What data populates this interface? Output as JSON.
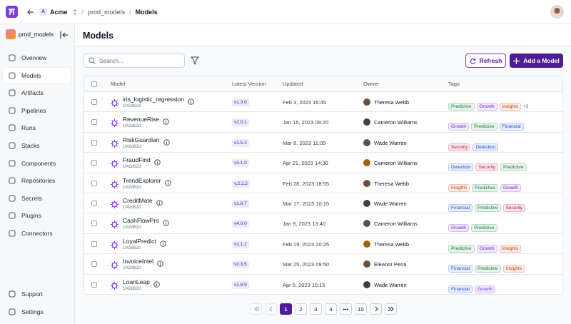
{
  "header": {
    "workspace_initial": "A",
    "workspace": "Acme",
    "breadcrumb": [
      "prod_models",
      "Models"
    ]
  },
  "sidebar": {
    "project": "prod_models",
    "nav": [
      "Overview",
      "Models",
      "Artifacts",
      "Pipelines",
      "Runs",
      "Stacks",
      "Components",
      "Repositories",
      "Secrets",
      "Plugins",
      "Connectors"
    ],
    "active": 1,
    "footer": [
      "Support",
      "Settings"
    ]
  },
  "main": {
    "title": "Models",
    "search_placeholder": "Search...",
    "refresh": "Refresh",
    "add": "Add a Model"
  },
  "table": {
    "columns": [
      "Model",
      "Latest Version",
      "Updated",
      "Owner",
      "Tags"
    ],
    "rows": [
      {
        "name": "iris_logistic_regression",
        "id": "1f42d62d",
        "version": "v1.3.0",
        "updated": "Feb 3, 2023 16:45",
        "owner": "Theresa Webb",
        "tags": [
          {
            "label": "Predictive",
            "color": "#15803d"
          },
          {
            "label": "Growth",
            "color": "#6d28d9"
          },
          {
            "label": "Insights",
            "color": "#c2410c"
          }
        ],
        "more": "+3"
      },
      {
        "name": "RevenueRise",
        "id": "1f42d62d",
        "version": "v2.0.1",
        "updated": "Jan 15, 2023 09:20",
        "owner": "Cameron Williams",
        "tags": [
          {
            "label": "Growth",
            "color": "#6d28d9"
          },
          {
            "label": "Predictive",
            "color": "#15803d"
          },
          {
            "label": "Financial",
            "color": "#1d4ed8"
          }
        ]
      },
      {
        "name": "RiskGuardian",
        "id": "1f42d62d",
        "version": "v1.5.3",
        "updated": "Mar 8, 2023 11:05",
        "owner": "Wade Warren",
        "tags": [
          {
            "label": "Security",
            "color": "#be123c"
          },
          {
            "label": "Detection",
            "color": "#1d4ed8"
          }
        ]
      },
      {
        "name": "FraudFind",
        "id": "1f42d62d",
        "version": "v3.1.0",
        "updated": "Apr 21, 2023 14:30",
        "owner": "Cameron Williams",
        "tags": [
          {
            "label": "Detection",
            "color": "#1d4ed8"
          },
          {
            "label": "Security",
            "color": "#be123c"
          },
          {
            "label": "Predictive",
            "color": "#15803d"
          }
        ]
      },
      {
        "name": "TrendExplorer",
        "id": "1f42d62d",
        "version": "v.2.2.2",
        "updated": "Feb 28, 2023 18:55",
        "owner": "Theresa Webb",
        "tags": [
          {
            "label": "Insights",
            "color": "#c2410c"
          },
          {
            "label": "Predictive",
            "color": "#15803d"
          },
          {
            "label": "Growth",
            "color": "#6d28d9"
          }
        ]
      },
      {
        "name": "CreditMate",
        "id": "1f42d62d",
        "version": "v1.8.7",
        "updated": "Mar 17, 2023 10:15",
        "owner": "Wade Warren",
        "tags": [
          {
            "label": "Financial",
            "color": "#1d4ed8"
          },
          {
            "label": "Predictive",
            "color": "#15803d"
          },
          {
            "label": "Security",
            "color": "#be123c"
          }
        ]
      },
      {
        "name": "CashFlowPro",
        "id": "1f42d62d",
        "version": "v4.0.0",
        "updated": "Jan 9, 2023 13:40",
        "owner": "Cameron Williams",
        "tags": [
          {
            "label": "Growth",
            "color": "#6d28d9"
          },
          {
            "label": "Predictive",
            "color": "#15803d"
          }
        ]
      },
      {
        "name": "LoyalPredict",
        "id": "1f42d62d",
        "version": "v1.1.2",
        "updated": "Feb 19, 2023 20:25",
        "owner": "Theresa Webb",
        "tags": [
          {
            "label": "Predictive",
            "color": "#15803d"
          },
          {
            "label": "Growth",
            "color": "#6d28d9"
          },
          {
            "label": "Insights",
            "color": "#c2410c"
          }
        ]
      },
      {
        "name": "InvoiceIntel",
        "id": "1f42d62d",
        "version": "v2.3.5",
        "updated": "Mar 25, 2023 09:50",
        "owner": "Eleanor Pena",
        "tags": [
          {
            "label": "Financial",
            "color": "#1d4ed8"
          },
          {
            "label": "Predictive",
            "color": "#15803d"
          },
          {
            "label": "Insights",
            "color": "#c2410c"
          }
        ]
      },
      {
        "name": "LoanLeap",
        "id": "1f42d62d",
        "version": "v1.6.9",
        "updated": "Apr 5, 2023 15:15",
        "owner": "Wade Warren",
        "tags": [
          {
            "label": "Financial",
            "color": "#1d4ed8"
          },
          {
            "label": "Growth",
            "color": "#6d28d9"
          }
        ]
      }
    ]
  },
  "pagination": {
    "pages": [
      1,
      2,
      3,
      4,
      "•••",
      10
    ],
    "current": 0
  }
}
